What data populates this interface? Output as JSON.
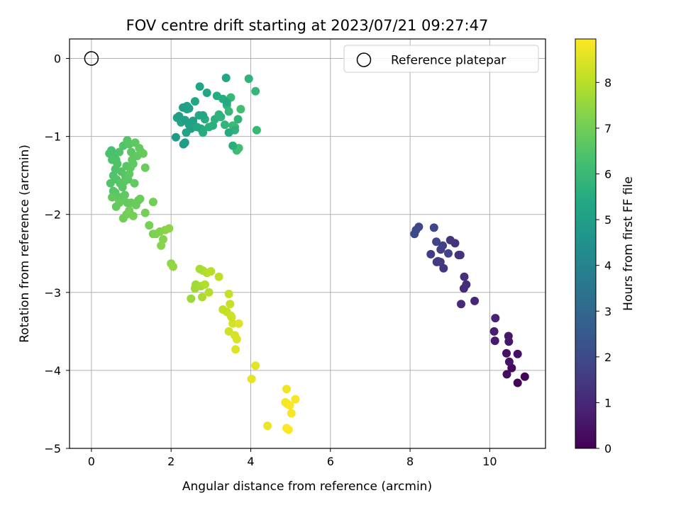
{
  "chart_data": {
    "type": "scatter",
    "title": "FOV centre drift starting at 2023/07/21 09:27:47",
    "xlabel": "Angular distance from reference (arcmin)",
    "ylabel": "Rotation from reference (arcmin)",
    "xlim": [
      -0.55,
      11.4
    ],
    "ylim": [
      -5.0,
      0.25
    ],
    "xticks": [
      0,
      2,
      4,
      6,
      8,
      10
    ],
    "yticks": [
      0,
      -1,
      -2,
      -3,
      -4,
      -5
    ],
    "grid": true,
    "legend": {
      "placement": "top-right",
      "entries": [
        "Reference platepar"
      ]
    },
    "reference_point": {
      "x": 0,
      "y": 0
    },
    "colorbar": {
      "label": "Hours from first FF file",
      "colormap": "viridis",
      "range": [
        0,
        8.95
      ],
      "ticks": [
        0,
        1,
        2,
        3,
        4,
        5,
        6,
        7,
        8
      ]
    },
    "series": [
      {
        "x": [
          10.7,
          10.88,
          10.55,
          10.43,
          10.42,
          10.7,
          10.49,
          10.47,
          10.48,
          10.13,
          10.11,
          10.14
        ],
        "y": [
          -4.16,
          -4.08,
          -3.97,
          -4.05,
          -3.78,
          -3.79,
          -3.89,
          -3.56,
          -3.63,
          -3.62,
          -3.5,
          -3.33
        ],
        "hours": [
          0.05,
          0.1,
          0.2,
          0.3,
          0.35,
          0.4,
          0.45,
          0.55,
          0.6,
          0.7,
          0.75,
          0.85
        ]
      },
      {
        "x": [
          9.62,
          9.28,
          9.35,
          9.41,
          9.36,
          9.22,
          9.13,
          9.01,
          8.84,
          8.76,
          8.7,
          8.67,
          8.52,
          8.77,
          8.82,
          8.96,
          8.66,
          8.6,
          8.22,
          8.15,
          8.11,
          9.26
        ],
        "y": [
          -3.11,
          -3.15,
          -2.95,
          -2.9,
          -2.8,
          -2.52,
          -2.37,
          -2.33,
          -2.69,
          -2.61,
          -2.6,
          -2.61,
          -2.51,
          -2.45,
          -2.4,
          -2.5,
          -2.35,
          -2.17,
          -2.16,
          -2.2,
          -2.25,
          -2.52
        ],
        "hours": [
          1.0,
          1.05,
          1.1,
          1.15,
          1.2,
          1.25,
          1.3,
          1.35,
          1.4,
          1.45,
          1.5,
          1.55,
          1.6,
          1.65,
          1.7,
          1.75,
          1.8,
          1.85,
          1.9,
          1.95,
          2.0,
          1.28
        ]
      },
      {
        "x": [
          2.12,
          2.31,
          2.35,
          2.5,
          2.55,
          2.45,
          2.38,
          2.2,
          2.15,
          2.25,
          2.4,
          2.6,
          2.7,
          2.75,
          2.8,
          2.85,
          2.95,
          3.05,
          3.1,
          3.2,
          3.25,
          3.35,
          3.4,
          3.45,
          3.5,
          3.55,
          3.6,
          3.65,
          3.7,
          3.75,
          3.3,
          3.55,
          3.6,
          3.45,
          3.4,
          3.38,
          3.68,
          4.15,
          4.12,
          3.95,
          2.72,
          2.8,
          2.9,
          3.15,
          2.4,
          2.3,
          2.2,
          2.35,
          2.45,
          2.65
        ],
        "y": [
          -1.01,
          -1.1,
          -1.08,
          -0.9,
          -0.8,
          -0.85,
          -0.95,
          -0.75,
          -0.76,
          -0.82,
          -0.65,
          -0.55,
          -0.73,
          -0.9,
          -0.95,
          -0.78,
          -0.88,
          -0.86,
          -0.78,
          -0.72,
          -0.75,
          -0.85,
          -0.6,
          -0.68,
          -0.5,
          -0.86,
          -0.88,
          -1.18,
          -1.15,
          -0.65,
          -0.52,
          -1.12,
          -0.92,
          -0.95,
          -0.56,
          -0.25,
          -0.78,
          -0.92,
          -0.42,
          -0.26,
          -0.36,
          -0.73,
          -0.44,
          -0.48,
          -0.61,
          -0.63,
          -0.74,
          -0.79,
          -0.64,
          -0.88
        ],
        "hours": [
          4.85,
          4.9,
          4.95,
          5.0,
          5.05,
          5.1,
          5.12,
          5.15,
          5.2,
          5.25,
          5.3,
          5.35,
          5.4,
          5.45,
          5.5,
          5.55,
          5.6,
          5.62,
          5.65,
          5.7,
          5.75,
          5.8,
          5.85,
          5.9,
          5.95,
          6.0,
          6.05,
          6.1,
          6.15,
          6.2,
          5.5,
          5.6,
          5.7,
          5.5,
          5.4,
          5.3,
          5.8,
          5.95,
          5.9,
          5.75,
          5.2,
          5.3,
          5.25,
          5.45,
          5.1,
          5.0,
          4.95,
          5.05,
          5.15,
          5.35
        ]
      },
      {
        "x": [
          0.5,
          0.58,
          0.62,
          0.7,
          0.8,
          0.9,
          0.95,
          1.0,
          1.1,
          1.2,
          1.25,
          1.3,
          1.35,
          0.45,
          0.52,
          0.6,
          0.65,
          0.75,
          0.85,
          0.88,
          0.92,
          0.98,
          1.05,
          1.15,
          0.55,
          0.63,
          0.72,
          0.78,
          0.82,
          0.95,
          1.02,
          1.08,
          1.18,
          0.48,
          0.55,
          0.6,
          0.68,
          0.74,
          0.84,
          0.9,
          1.0,
          1.12,
          1.22,
          1.55,
          1.35,
          0.8,
          0.88,
          0.95,
          1.05,
          0.7,
          0.62,
          0.52
        ],
        "y": [
          -1.18,
          -1.25,
          -1.3,
          -1.2,
          -1.12,
          -1.05,
          -1.1,
          -1.2,
          -1.08,
          -1.15,
          -1.2,
          -1.22,
          -1.4,
          -1.22,
          -1.3,
          -1.42,
          -1.35,
          -1.45,
          -1.5,
          -1.38,
          -1.55,
          -1.4,
          -1.35,
          -1.25,
          -1.5,
          -1.55,
          -1.6,
          -1.65,
          -1.58,
          -1.48,
          -1.3,
          -1.6,
          -1.82,
          -1.6,
          -1.7,
          -1.72,
          -1.8,
          -1.78,
          -1.75,
          -1.85,
          -1.85,
          -1.88,
          -1.8,
          -1.84,
          -1.98,
          -2.05,
          -2.0,
          -1.95,
          -2.02,
          -1.85,
          -1.9,
          -1.78
        ],
        "hours": [
          6.3,
          6.35,
          6.4,
          6.45,
          6.5,
          6.55,
          6.6,
          6.65,
          6.7,
          6.75,
          6.8,
          6.85,
          6.9,
          6.35,
          6.4,
          6.42,
          6.45,
          6.5,
          6.55,
          6.6,
          6.62,
          6.65,
          6.7,
          6.75,
          6.45,
          6.5,
          6.55,
          6.6,
          6.65,
          6.7,
          6.72,
          6.75,
          6.8,
          6.5,
          6.55,
          6.6,
          6.65,
          6.7,
          6.75,
          6.8,
          6.85,
          6.88,
          6.9,
          7.0,
          7.05,
          7.0,
          7.02,
          7.05,
          7.08,
          6.85,
          6.8,
          6.75
        ]
      },
      {
        "x": [
          1.45,
          1.55,
          1.62,
          1.72,
          1.8,
          1.85,
          1.95,
          2.0,
          2.05,
          1.75
        ],
        "y": [
          -2.14,
          -2.25,
          -2.25,
          -2.22,
          -2.32,
          -2.2,
          -2.18,
          -2.63,
          -2.67,
          -2.4
        ],
        "hours": [
          7.1,
          7.15,
          7.2,
          7.25,
          7.3,
          7.35,
          7.4,
          7.45,
          7.5,
          7.32
        ]
      },
      {
        "x": [
          2.5,
          2.6,
          2.62,
          2.75,
          2.78,
          2.8,
          2.85,
          2.9,
          3.0,
          3.2,
          3.3,
          3.4,
          3.45,
          3.5,
          3.45,
          3.55,
          3.6,
          3.65,
          3.7,
          3.62,
          3.52,
          3.48,
          2.72,
          2.95
        ],
        "y": [
          -3.08,
          -2.95,
          -2.9,
          -2.92,
          -3.06,
          -2.72,
          -2.9,
          -2.75,
          -2.73,
          -2.8,
          -3.22,
          -3.25,
          -3.02,
          -3.3,
          -3.5,
          -3.4,
          -3.55,
          -3.6,
          -3.4,
          -3.73,
          -3.32,
          -3.15,
          -2.7,
          -3.0
        ],
        "hours": [
          7.6,
          7.65,
          7.7,
          7.75,
          7.8,
          7.85,
          7.9,
          7.95,
          8.0,
          8.05,
          8.1,
          8.15,
          8.2,
          8.25,
          8.3,
          8.35,
          8.4,
          8.45,
          8.5,
          8.55,
          8.3,
          8.2,
          7.8,
          7.95
        ]
      },
      {
        "x": [
          4.12,
          4.02,
          4.42,
          4.9,
          4.87,
          4.92,
          5.02,
          5.12,
          4.98,
          4.95,
          4.9
        ],
        "y": [
          -3.94,
          -4.11,
          -4.71,
          -4.24,
          -4.41,
          -4.43,
          -4.55,
          -4.37,
          -4.45,
          -4.76,
          -4.74
        ],
        "hours": [
          8.6,
          8.62,
          8.7,
          8.75,
          8.8,
          8.82,
          8.85,
          8.88,
          8.9,
          8.92,
          8.95
        ]
      }
    ]
  }
}
